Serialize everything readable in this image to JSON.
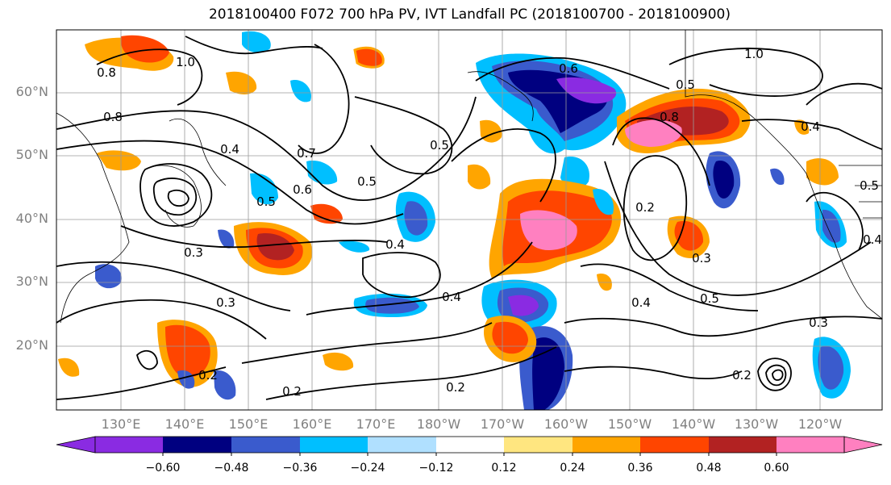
{
  "title": "2018100400 F072 700 hPa PV, IVT Landfall PC (2018100700 - 2018100900)",
  "lat_labels": [
    "60°N",
    "50°N",
    "40°N",
    "30°N",
    "20°N"
  ],
  "lon_labels": [
    "130°E",
    "140°E",
    "150°E",
    "160°E",
    "170°E",
    "180°W",
    "170°W",
    "160°W",
    "150°W",
    "140°W",
    "130°W",
    "120°W"
  ],
  "contour_labels": [
    "0.8",
    "1.0",
    "0.8",
    "0.4",
    "0.3",
    "0.2",
    "0.2",
    "0.5",
    "0.6",
    "0.7",
    "0.5",
    "0.4",
    "0.4",
    "0.5",
    "0.6",
    "0.8",
    "0.5",
    "0.4",
    "0.2",
    "0.3",
    "0.4",
    "0.5",
    "0.3",
    "0.2",
    "0.2",
    "0.3",
    "0.4",
    "1.0",
    "0.5"
  ],
  "colorbar": {
    "ticks": [
      "−0.60",
      "−0.48",
      "−0.36",
      "−0.24",
      "−0.12",
      "0.12",
      "0.24",
      "0.36",
      "0.48",
      "0.60"
    ],
    "colors": [
      "#8a2be2",
      "#000080",
      "#3a5bcd",
      "#00bfff",
      "#b0e0ff",
      "#ffffff",
      "#ffe680",
      "#ffa500",
      "#ff4500",
      "#b22222",
      "#ff80c0"
    ]
  }
}
